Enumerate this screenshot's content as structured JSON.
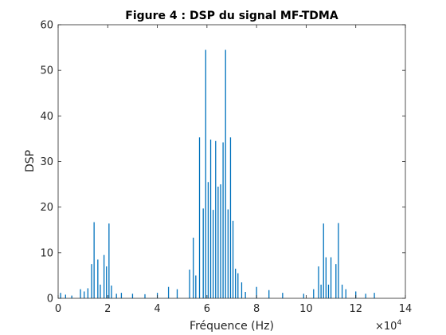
{
  "chart_data": {
    "type": "bar",
    "title": "Figure 4 : DSP du signal MF-TDMA",
    "xlabel": "Fréquence (Hz)",
    "ylabel": "DSP",
    "x_exponent_label": "×10",
    "x_exponent_power": "4",
    "xlim": [
      0,
      14
    ],
    "ylim": [
      0,
      60
    ],
    "x_ticks": [
      "0",
      "2",
      "4",
      "6",
      "8",
      "10",
      "12",
      "14"
    ],
    "y_ticks": [
      "0",
      "10",
      "20",
      "30",
      "40",
      "50",
      "60"
    ],
    "grid": false,
    "box": true,
    "color": "#0072BD",
    "series": [
      {
        "x": [
          0.1,
          0.3,
          0.55,
          0.9,
          1.05,
          1.2,
          1.35,
          1.45,
          1.6,
          1.7,
          1.85,
          1.95,
          2.05,
          2.15,
          2.35,
          2.55,
          3.0,
          3.5,
          4.0,
          4.45,
          4.8,
          5.3,
          5.45,
          5.55,
          5.7,
          5.85,
          5.95,
          6.05,
          6.15,
          6.25,
          6.35,
          6.45,
          6.55,
          6.65,
          6.75,
          6.85,
          6.95,
          7.05,
          7.15,
          7.25,
          7.4,
          7.55,
          8.0,
          8.5,
          9.05,
          9.9,
          10.3,
          10.5,
          10.6,
          10.7,
          10.8,
          10.9,
          11.0,
          11.2,
          11.3,
          11.45,
          11.6,
          12.0,
          12.4,
          12.75
        ],
        "y": [
          1.2,
          0.8,
          0.6,
          2.0,
          1.5,
          2.2,
          7.5,
          16.7,
          8.5,
          3.0,
          9.5,
          7.0,
          16.4,
          2.8,
          1.0,
          1.2,
          1.0,
          0.9,
          1.2,
          2.5,
          2.0,
          6.3,
          13.3,
          5.0,
          35.3,
          19.7,
          54.5,
          25.5,
          34.8,
          19.4,
          34.5,
          24.5,
          25.0,
          34.2,
          54.5,
          19.5,
          35.3,
          17.0,
          6.5,
          5.5,
          3.5,
          1.4,
          2.5,
          1.8,
          1.2,
          1.0,
          2.0,
          7.0,
          3.0,
          16.4,
          9.0,
          3.0,
          9.0,
          7.5,
          16.5,
          3.0,
          2.0,
          1.5,
          1.0,
          1.2
        ]
      }
    ]
  }
}
